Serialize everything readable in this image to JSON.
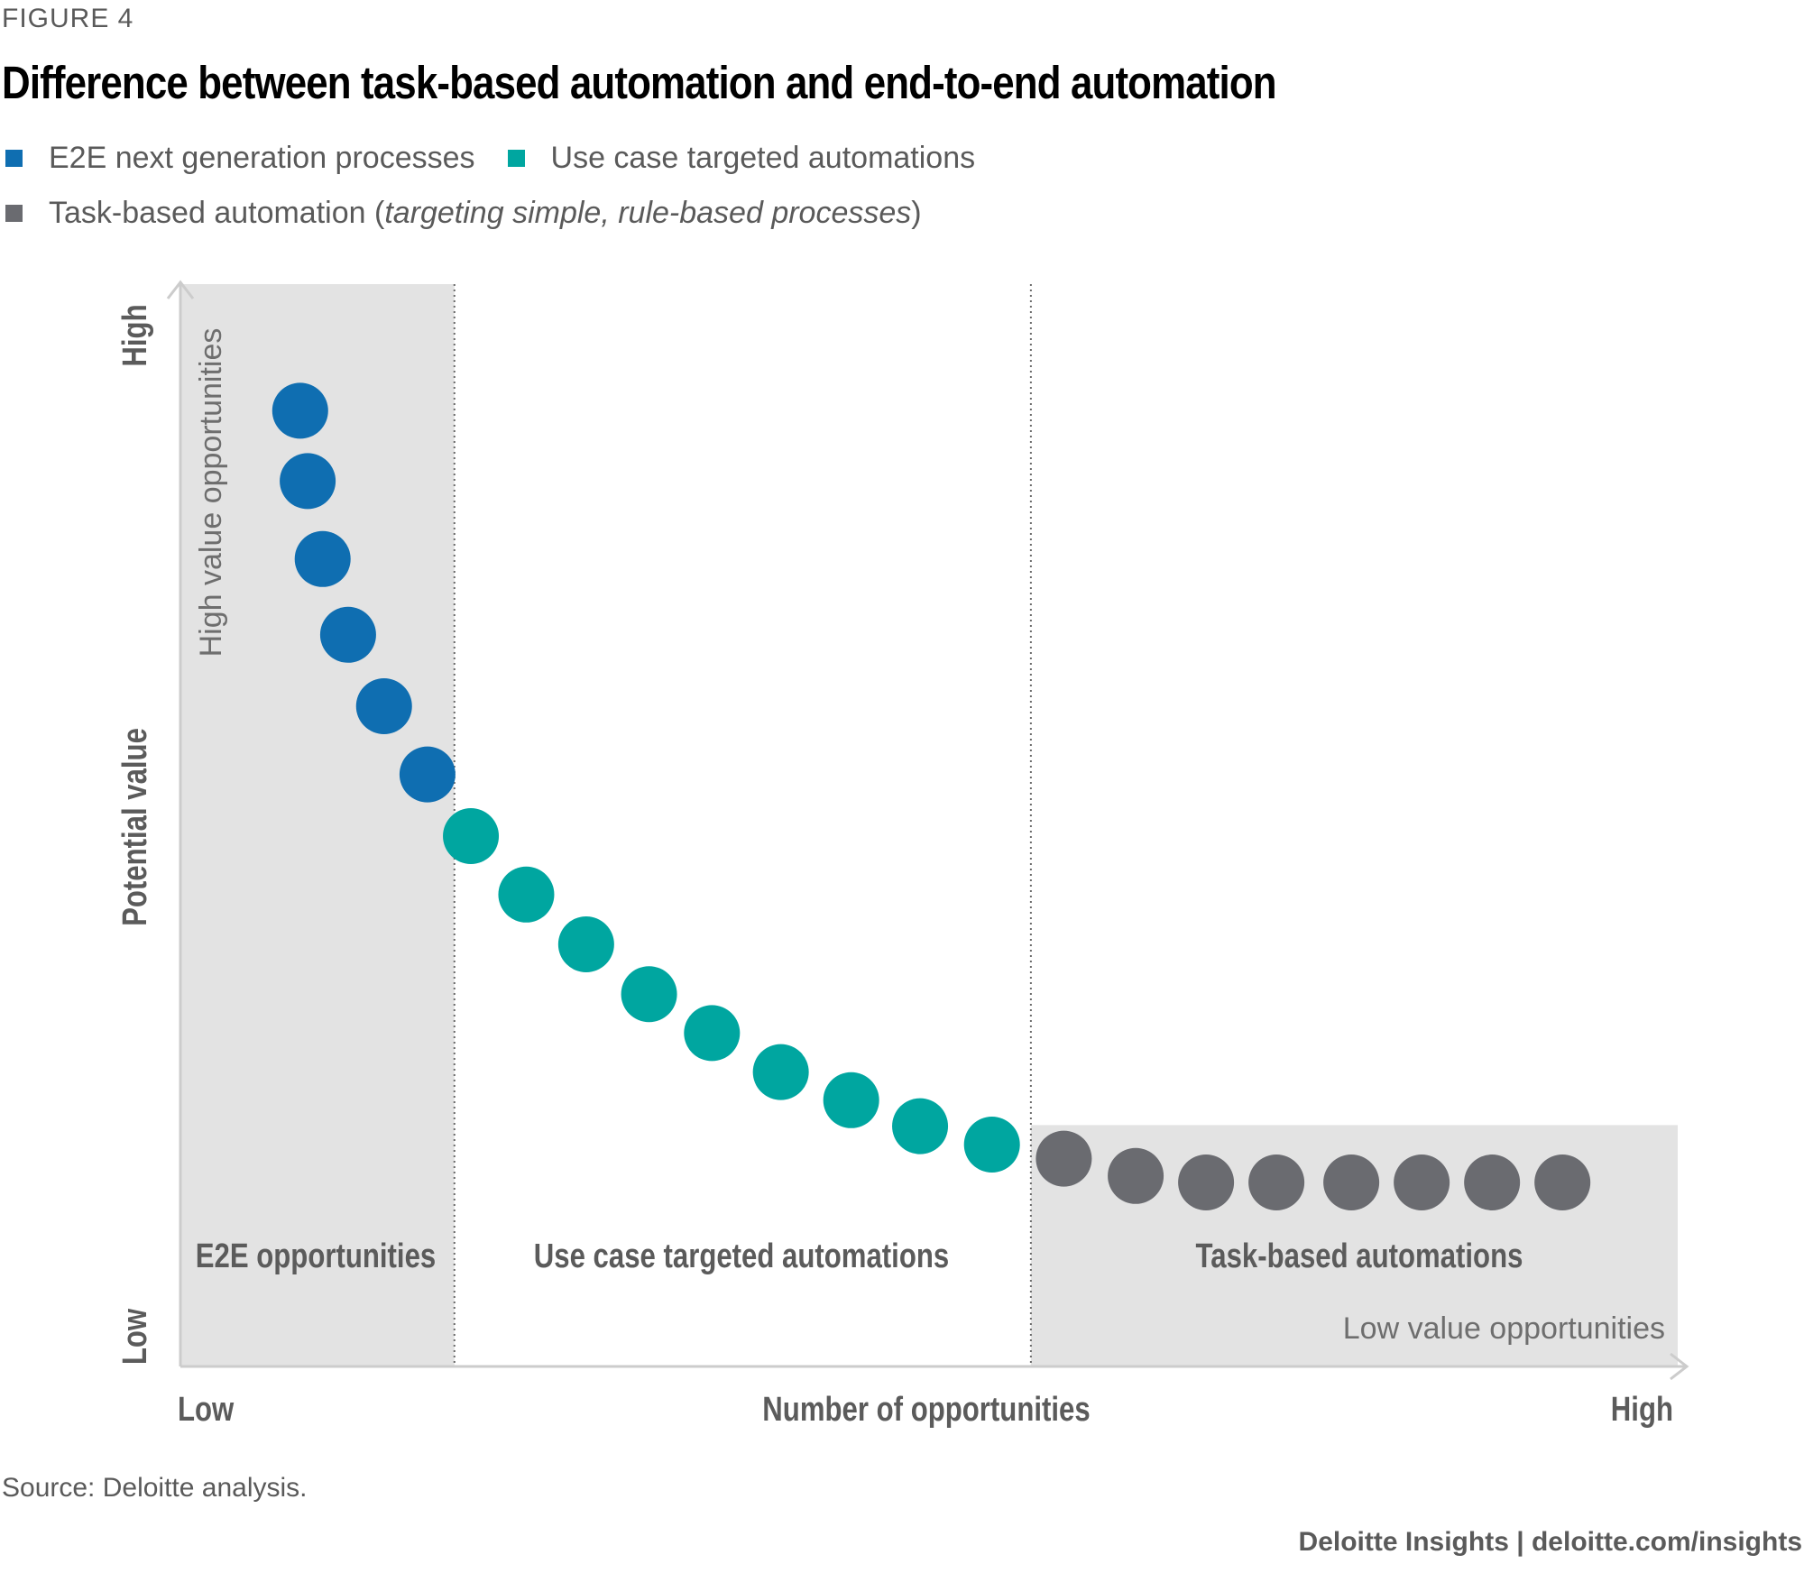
{
  "figure_label": "FIGURE 4",
  "title": "Difference between task-based automation and end-to-end automation",
  "legend": {
    "e2e": "E2E next generation processes",
    "use_case": "Use case targeted automations",
    "task_prefix": "Task-based automation (",
    "task_italic": "targeting simple, rule-based processes",
    "task_suffix": ")"
  },
  "colors": {
    "e2e": "#0f6eb1",
    "use_case": "#00a6a0",
    "task": "#6a6b70",
    "shade": "#e3e3e3",
    "axis": "#cccccc"
  },
  "chart_data": {
    "type": "scatter",
    "xlabel": "Number of opportunities",
    "ylabel": "Potential value",
    "x_ticks": {
      "low": "Low",
      "high": "High"
    },
    "y_ticks": {
      "low": "Low",
      "high": "High"
    },
    "region_labels": {
      "e2e": "E2E opportunities",
      "use_case": "Use case targeted automations",
      "task": "Task-based automations"
    },
    "annotations": {
      "high_value": "High value opportunities",
      "low_value": "Low value opportunities"
    },
    "xlim": [
      0,
      100
    ],
    "ylim": [
      0,
      100
    ],
    "regions": [
      {
        "series": "e2e",
        "x_from": 0,
        "x_to": 18.3,
        "y_to": 100
      },
      {
        "series": "use_case",
        "x_from": 18.3,
        "x_to": 56.8
      },
      {
        "series": "task",
        "x_from": 56.8,
        "x_to": 100,
        "y_to": 22.3
      }
    ],
    "series": [
      {
        "name": "E2E next generation processes",
        "key": "e2e",
        "points": [
          [
            8.0,
            88.3
          ],
          [
            8.5,
            81.8
          ],
          [
            9.5,
            74.6
          ],
          [
            11.2,
            67.6
          ],
          [
            13.6,
            61.0
          ],
          [
            16.5,
            54.7
          ]
        ]
      },
      {
        "name": "Use case targeted automations",
        "key": "use_case",
        "points": [
          [
            19.4,
            49.0
          ],
          [
            23.1,
            43.6
          ],
          [
            27.1,
            39.0
          ],
          [
            31.3,
            34.4
          ],
          [
            35.5,
            30.8
          ],
          [
            40.1,
            27.2
          ],
          [
            44.8,
            24.6
          ],
          [
            49.4,
            22.2
          ],
          [
            54.2,
            20.5
          ]
        ]
      },
      {
        "name": "Task-based automation",
        "key": "task",
        "points": [
          [
            59.0,
            19.2
          ],
          [
            63.8,
            17.6
          ],
          [
            68.5,
            17.0
          ],
          [
            73.2,
            17.0
          ],
          [
            78.2,
            17.0
          ],
          [
            82.9,
            17.0
          ],
          [
            87.6,
            17.0
          ],
          [
            92.3,
            17.0
          ]
        ]
      }
    ]
  },
  "source": "Source: Deloitte analysis.",
  "brand": {
    "name": "Deloitte Insights",
    "separator": " | ",
    "url": "deloitte.com/insights"
  }
}
